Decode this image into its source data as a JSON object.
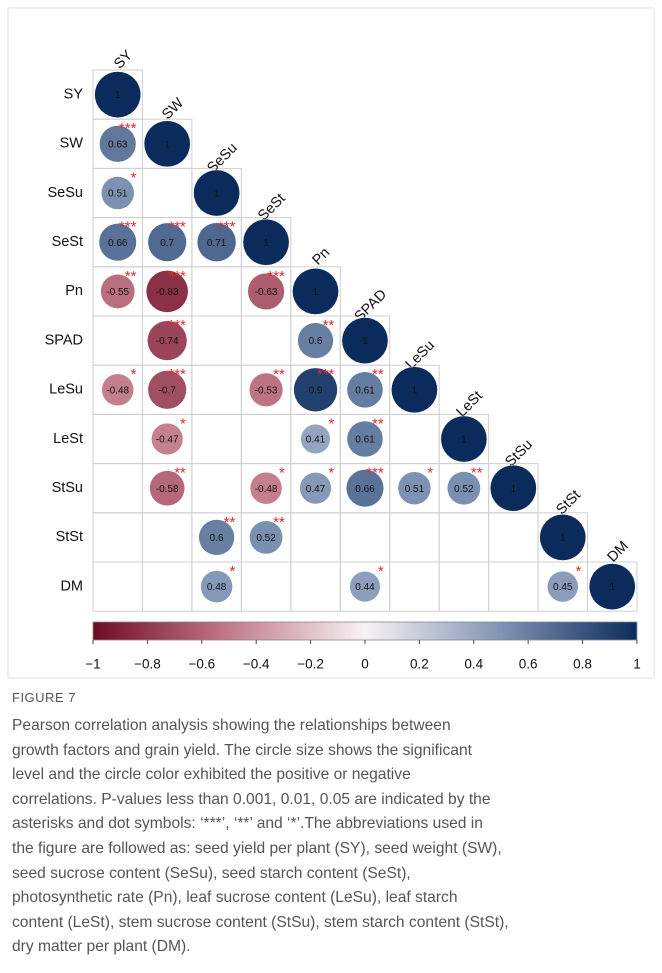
{
  "chart_data": {
    "type": "corrplot",
    "variables": [
      "SY",
      "SW",
      "SeSu",
      "SeSt",
      "Pn",
      "SPAD",
      "LeSu",
      "LeSt",
      "StSu",
      "StSt",
      "DM"
    ],
    "matrix": [
      [
        1
      ],
      [
        0.63,
        1
      ],
      [
        0.51,
        null,
        1
      ],
      [
        0.66,
        0.7,
        0.71,
        1
      ],
      [
        -0.55,
        -0.83,
        null,
        -0.63,
        1
      ],
      [
        null,
        -0.74,
        null,
        null,
        0.6,
        1
      ],
      [
        -0.48,
        -0.7,
        null,
        -0.53,
        0.9,
        0.61,
        1
      ],
      [
        null,
        -0.47,
        null,
        null,
        0.41,
        0.61,
        null,
        1
      ],
      [
        null,
        -0.58,
        null,
        -0.48,
        0.47,
        0.66,
        0.51,
        0.52,
        1
      ],
      [
        null,
        null,
        0.6,
        0.52,
        null,
        null,
        null,
        null,
        null,
        1
      ],
      [
        null,
        null,
        0.48,
        null,
        null,
        0.44,
        null,
        null,
        null,
        0.45,
        1
      ]
    ],
    "stars": [
      [
        null
      ],
      [
        "***",
        null
      ],
      [
        "*",
        null,
        null
      ],
      [
        "***",
        "***",
        "***",
        null
      ],
      [
        "**",
        "***",
        null,
        "***",
        null
      ],
      [
        null,
        "***",
        null,
        null,
        "**",
        null
      ],
      [
        "*",
        "***",
        null,
        "**",
        "***",
        "**",
        null
      ],
      [
        null,
        "*",
        null,
        null,
        "*",
        "**",
        null,
        null
      ],
      [
        null,
        "**",
        null,
        "*",
        "*",
        "***",
        "*",
        "**",
        null
      ],
      [
        null,
        null,
        "**",
        "**",
        null,
        null,
        null,
        null,
        null,
        null
      ],
      [
        null,
        null,
        "*",
        null,
        null,
        "*",
        null,
        null,
        null,
        "*",
        null
      ]
    ],
    "star_color": "#e8282b",
    "colorscale": [
      "#6e0b25",
      "#c27a8a",
      "#f7f2f4",
      "#7f94b4",
      "#0b2b5c"
    ],
    "clim": [
      -1,
      1
    ],
    "colorbar_ticks": [
      {
        "value": -1,
        "label": "−1"
      },
      {
        "value": -0.8,
        "label": "−0.8"
      },
      {
        "value": -0.6,
        "label": "−0.6"
      },
      {
        "value": -0.4,
        "label": "−0.4"
      },
      {
        "value": -0.2,
        "label": "−0.2"
      },
      0,
      0.2,
      0.4,
      0.6,
      0.8,
      1
    ]
  },
  "figure_label": "FIGURE 7",
  "caption": [
    "Pearson correlation analysis showing the relationships between",
    "growth factors and grain yield. The circle size shows the significant",
    "level and the circle color exhibited the positive or negative",
    "correlations. P-values less than 0.001, 0.01, 0.05 are indicated by the",
    "asterisks and dot symbols: ‘***’, ‘**’ and ‘*’.The abbreviations used in",
    "the figure are followed as: seed yield per plant (SY), seed weight (SW),",
    "seed sucrose content (SeSu), seed starch content (SeSt),",
    "photosynthetic rate (Pn), leaf sucrose content (LeSu), leaf starch",
    "content (LeSt), stem sucrose content (StSu), stem starch content (StSt),",
    "dry matter per plant (DM)."
  ]
}
